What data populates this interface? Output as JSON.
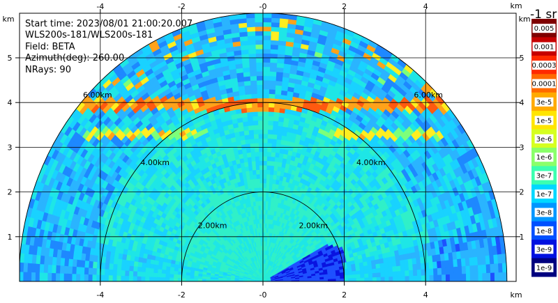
{
  "info": {
    "start_time": "Start time: 2023/08/01 21:00:20.007",
    "instrument": "WLS200s-181/WLS200s-181",
    "field": "Field: BETA",
    "azimuth": "Azimuth(deg): 260.00",
    "nrays": "NRays: 90"
  },
  "colorbar": {
    "unit_label": "-1 sr",
    "tick_labels": [
      "0.005",
      "0.001",
      "0.0003",
      "0.0001",
      "3e-5",
      "1e-5",
      "3e-6",
      "1e-6",
      "3e-7",
      "1e-7",
      "3e-8",
      "1e-8",
      "3e-9",
      "1e-9"
    ],
    "colors": [
      "#7f0000",
      "#c60000",
      "#ff2a00",
      "#ff6a00",
      "#ffaa00",
      "#ffe500",
      "#d6ff20",
      "#8aff6a",
      "#3cffb0",
      "#00d8ff",
      "#0096ff",
      "#0050ff",
      "#0010e0",
      "#00007f"
    ]
  },
  "chart_data": {
    "type": "heatmap",
    "projection": "RHI (range-height sector)",
    "x_ticks": [
      "-4",
      "-2",
      "-0",
      "2",
      "4"
    ],
    "y_ticks": [
      "1",
      "2",
      "3",
      "4",
      "5"
    ],
    "x_unit": "km",
    "y_unit": "km",
    "xlim": [
      -5.9,
      6.0
    ],
    "ylim": [
      0,
      6.3
    ],
    "range_rings_km": [
      2,
      4,
      6
    ],
    "range_ring_labels": [
      "2.00km",
      "4.00km",
      "6.00km"
    ],
    "max_range_km": 6.0,
    "grid": true,
    "features": [
      {
        "desc": "aerosol layer",
        "height_km": 3.9,
        "level": "3e-5"
      },
      {
        "desc": "aerosol layer",
        "height_km": 3.3,
        "level": "3e-5"
      },
      {
        "desc": "near-field region",
        "level": "3e-7"
      }
    ]
  }
}
